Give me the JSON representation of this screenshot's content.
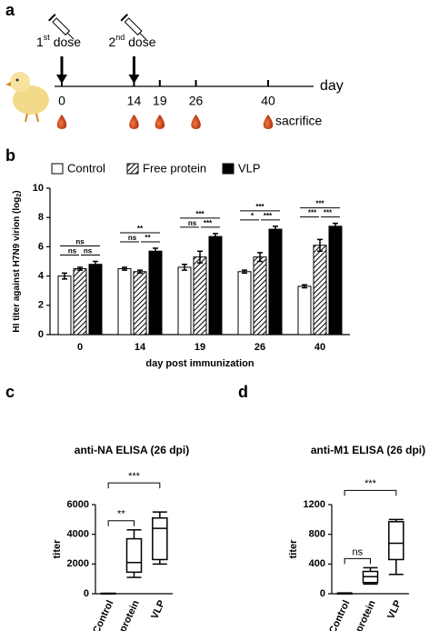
{
  "timeline": {
    "panel": "a",
    "dose_labels": [
      {
        "num": "1",
        "sup": "st",
        "text": " dose",
        "day": 0
      },
      {
        "num": "2",
        "sup": "nd",
        "text": " dose",
        "day": 14
      }
    ],
    "days": [
      0,
      14,
      19,
      26,
      40
    ],
    "x_label": "day",
    "end_label": "sacrifice"
  },
  "chart_data": [
    {
      "type": "bar",
      "panel": "b",
      "x_label": "day post immunization",
      "y_label": "HI titer against H7N9 virion (log",
      "y_label_sub": "2",
      "y_label_end": ")",
      "categories": [
        "0",
        "14",
        "19",
        "26",
        "40"
      ],
      "series": [
        {
          "name": "Control",
          "color": "#ffffff",
          "values": [
            4.0,
            4.5,
            4.6,
            4.3,
            3.3
          ],
          "errors": [
            0.2,
            0.1,
            0.2,
            0.1,
            0.1
          ]
        },
        {
          "name": "Free protein",
          "color": "#555555",
          "hatch": true,
          "values": [
            4.5,
            4.3,
            5.3,
            5.3,
            6.1
          ],
          "errors": [
            0.1,
            0.1,
            0.4,
            0.3,
            0.4
          ]
        },
        {
          "name": "VLP",
          "color": "#000000",
          "values": [
            4.8,
            5.7,
            6.7,
            7.2,
            7.4
          ],
          "errors": [
            0.2,
            0.2,
            0.2,
            0.2,
            0.2
          ]
        }
      ],
      "significance": [
        [
          "ns",
          "ns",
          "ns"
        ],
        [
          "**",
          "ns",
          "**"
        ],
        [
          "***",
          "ns",
          "***"
        ],
        [
          "***",
          "*",
          "***"
        ],
        [
          "***",
          "***",
          "***"
        ]
      ],
      "ylim": [
        0,
        10
      ],
      "yticks": [
        0,
        2,
        4,
        6,
        8,
        10
      ]
    },
    {
      "type": "box",
      "panel": "c",
      "title": "anti-NA ELISA (26 dpi)",
      "y_label": "titer",
      "categories": [
        "Control",
        "Free protein",
        "VLP"
      ],
      "boxes": [
        {
          "min": 0,
          "q1": 0,
          "median": 0,
          "q3": 20,
          "max": 30
        },
        {
          "min": 1100,
          "q1": 1450,
          "median": 2100,
          "q3": 3700,
          "max": 4300
        },
        {
          "min": 2000,
          "q1": 2300,
          "median": 4400,
          "q3": 5100,
          "max": 5500
        }
      ],
      "significance": [
        {
          "label": "**",
          "to": 1
        },
        {
          "label": "***",
          "to": 2
        }
      ],
      "ylim": [
        0,
        6000
      ],
      "yticks": [
        0,
        2000,
        4000,
        6000
      ]
    },
    {
      "type": "box",
      "panel": "d",
      "title": "anti-M1 ELISA (26 dpi)",
      "y_label": "titer",
      "categories": [
        "Control",
        "Free protein",
        "VLP"
      ],
      "boxes": [
        {
          "min": 0,
          "q1": 0,
          "median": 0,
          "q3": 5,
          "max": 10
        },
        {
          "min": 130,
          "q1": 150,
          "median": 230,
          "q3": 300,
          "max": 350
        },
        {
          "min": 260,
          "q1": 460,
          "median": 680,
          "q3": 970,
          "max": 1000
        }
      ],
      "significance": [
        {
          "label": "ns",
          "to": 1
        },
        {
          "label": "***",
          "to": 2
        }
      ],
      "ylim": [
        0,
        1200
      ],
      "yticks": [
        0,
        400,
        800,
        1200
      ]
    }
  ]
}
